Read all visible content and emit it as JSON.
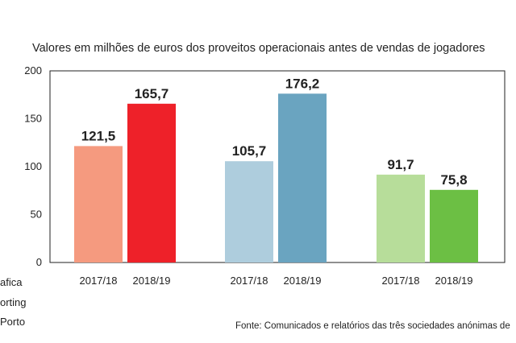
{
  "chart_data": {
    "type": "bar",
    "title": "Valores em milhões de euros dos proveitos operacionais antes de vendas de jogadores",
    "ylim": [
      0,
      200
    ],
    "yticks": [
      0,
      50,
      100,
      150,
      200
    ],
    "groups": [
      {
        "name": "Benfica",
        "bars": [
          {
            "category": "2017/18",
            "value": 121.5,
            "label": "121,5",
            "color": "#f59a7f"
          },
          {
            "category": "2018/19",
            "value": 165.7,
            "label": "165,7",
            "color": "#ee2129"
          }
        ]
      },
      {
        "name": "Sporting",
        "bars": [
          {
            "category": "2017/18",
            "value": 105.7,
            "label": "105,7",
            "color": "#aecddd"
          },
          {
            "category": "2018/19",
            "value": 176.2,
            "label": "176,2",
            "color": "#6aa4c0"
          }
        ]
      },
      {
        "name": "Porto",
        "bars": [
          {
            "category": "2017/18",
            "value": 91.7,
            "label": "91,7",
            "color": "#b7dd9a"
          },
          {
            "category": "2018/19",
            "value": 75.8,
            "label": "75,8",
            "color": "#6cbf44"
          }
        ]
      }
    ],
    "legend_items": [
      "afica",
      "orting",
      "Porto"
    ],
    "source": "Fonte: Comunicados e relatórios das três sociedades anónimas de"
  }
}
